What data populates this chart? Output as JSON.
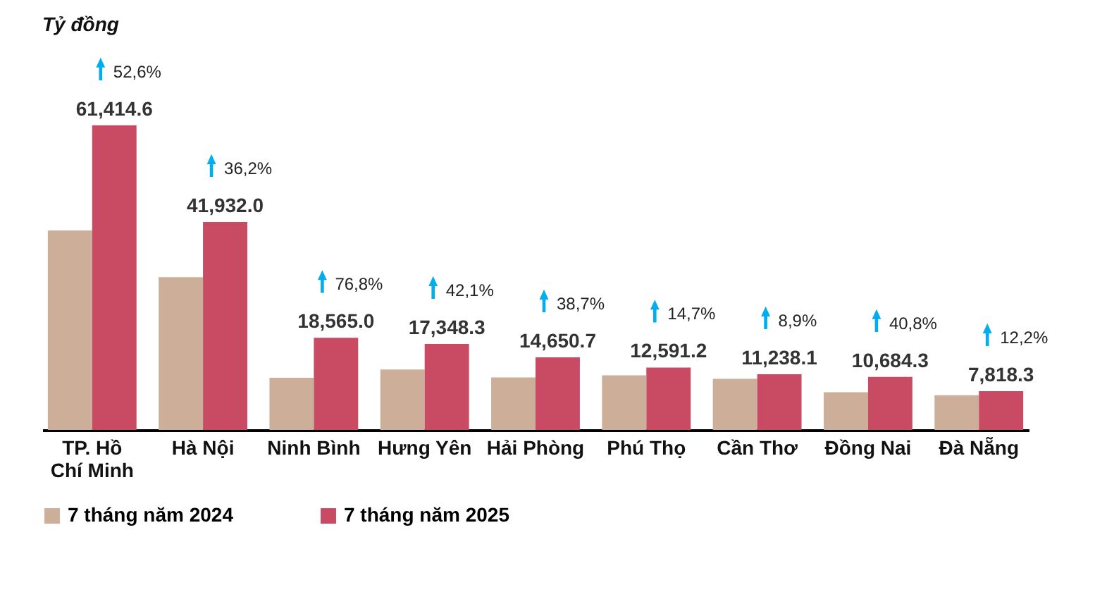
{
  "chart_data": {
    "type": "bar",
    "ylabel": "Tỷ đồng",
    "legend": "bottom",
    "categories": [
      "TP. Hồ Chí Minh",
      "Hà Nội",
      "Ninh Bình",
      "Hưng Yên",
      "Hải Phòng",
      "Phú Thọ",
      "Cần Thơ",
      "Đồng Nai",
      "Đà Nẵng"
    ],
    "series": [
      {
        "name": "7 tháng năm 2024",
        "color": "#cdae98",
        "values": [
          40200,
          30800,
          10500,
          12200,
          10600,
          11000,
          10300,
          7600,
          7000
        ]
      },
      {
        "name": "7 tháng năm 2025",
        "color": "#c84a63",
        "values": [
          61414.6,
          41932.0,
          18565.0,
          17348.3,
          14650.7,
          12591.2,
          11238.1,
          10684.3,
          7818.3
        ],
        "value_labels": [
          "61,414.6",
          "41,932.0",
          "18,565.0",
          "17,348.3",
          "14,650.7",
          "12,591.2",
          "11,238.1",
          "10,684.3",
          "7,818.3"
        ]
      }
    ],
    "annotations": [
      "52,6%",
      "36,2%",
      "76,8%",
      "42,1%",
      "38,7%",
      "14,7%",
      "8,9%",
      "40,8%",
      "12,2%"
    ]
  }
}
